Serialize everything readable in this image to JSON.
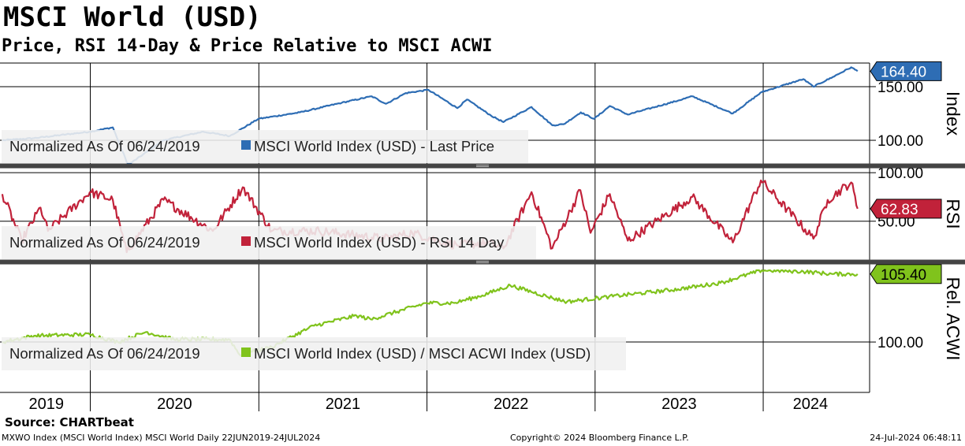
{
  "title": "MSCI World (USD)",
  "subtitle": "Price, RSI 14-Day & Price Relative to MSCI ACWI",
  "source": "Source: CHARTbeat",
  "footer": {
    "left": "MXWO Index (MSCI World Index) MSCI World  Daily 22JUN2019-24JUL2024",
    "center": "Copyright© 2024 Bloomberg Finance L.P.",
    "right": "24-Jul-2024 06:48:11"
  },
  "chart_data": [
    {
      "type": "line",
      "panel": "price",
      "axis_label": "Index",
      "legend_prefix": "Normalized As Of 06/24/2019",
      "series": [
        {
          "name": "MSCI World Index (USD) - Last Price",
          "color": "#2e6db4",
          "points": [
            [
              "2019-06-24",
              100
            ],
            [
              "2019-09-01",
              102
            ],
            [
              "2019-12-31",
              108
            ],
            [
              "2020-02-19",
              112
            ],
            [
              "2020-03-23",
              77
            ],
            [
              "2020-06-08",
              100
            ],
            [
              "2020-09-02",
              108
            ],
            [
              "2020-10-30",
              104
            ],
            [
              "2020-12-31",
              120
            ],
            [
              "2021-03-31",
              126
            ],
            [
              "2021-06-30",
              135
            ],
            [
              "2021-09-03",
              141
            ],
            [
              "2021-10-04",
              134
            ],
            [
              "2021-11-16",
              144
            ],
            [
              "2022-01-04",
              147
            ],
            [
              "2022-03-08",
              130
            ],
            [
              "2022-03-29",
              138
            ],
            [
              "2022-05-20",
              123
            ],
            [
              "2022-06-16",
              117
            ],
            [
              "2022-08-16",
              131
            ],
            [
              "2022-09-30",
              114
            ],
            [
              "2022-10-25",
              115
            ],
            [
              "2022-12-01",
              126
            ],
            [
              "2022-12-30",
              120
            ],
            [
              "2023-02-02",
              132
            ],
            [
              "2023-03-13",
              124
            ],
            [
              "2023-06-30",
              137
            ],
            [
              "2023-07-31",
              141
            ],
            [
              "2023-10-27",
              125
            ],
            [
              "2023-12-29",
              145
            ],
            [
              "2024-03-28",
              157
            ],
            [
              "2024-04-19",
              150
            ],
            [
              "2024-05-31",
              159
            ],
            [
              "2024-07-10",
              168
            ],
            [
              "2024-07-24",
              164.4
            ]
          ]
        }
      ],
      "y_ticks": [
        100,
        150
      ],
      "ylim": [
        78,
        172
      ],
      "last_value": "164.40"
    },
    {
      "type": "line",
      "panel": "rsi",
      "axis_label": "RSI",
      "legend_prefix": "Normalized As Of 06/24/2019",
      "series": [
        {
          "name": "MSCI World Index (USD) - RSI 14 Day",
          "color": "#c1223a",
          "points": [
            [
              "2019-06-24",
              78
            ],
            [
              "2019-08-05",
              30
            ],
            [
              "2019-09-15",
              64
            ],
            [
              "2019-10-01",
              40
            ],
            [
              "2019-12-31",
              80
            ],
            [
              "2020-02-19",
              72
            ],
            [
              "2020-03-20",
              18
            ],
            [
              "2020-06-08",
              72
            ],
            [
              "2020-09-23",
              40
            ],
            [
              "2020-11-27",
              85
            ],
            [
              "2021-01-29",
              40
            ],
            [
              "2021-05-12",
              40
            ],
            [
              "2021-09-30",
              32
            ],
            [
              "2021-11-30",
              38
            ],
            [
              "2022-01-27",
              30
            ],
            [
              "2022-03-08",
              25
            ],
            [
              "2022-05-12",
              28
            ],
            [
              "2022-06-16",
              22
            ],
            [
              "2022-08-16",
              80
            ],
            [
              "2022-09-30",
              22
            ],
            [
              "2022-11-30",
              82
            ],
            [
              "2022-12-22",
              38
            ],
            [
              "2023-02-02",
              78
            ],
            [
              "2023-03-13",
              30
            ],
            [
              "2023-07-31",
              75
            ],
            [
              "2023-10-27",
              28
            ],
            [
              "2023-12-27",
              92
            ],
            [
              "2024-04-19",
              32
            ],
            [
              "2024-05-20",
              72
            ],
            [
              "2024-07-10",
              90
            ],
            [
              "2024-07-24",
              62.83
            ]
          ]
        }
      ],
      "y_ticks": [
        50,
        100
      ],
      "ylim": [
        10,
        105
      ],
      "last_value": "62.83"
    },
    {
      "type": "line",
      "panel": "relative",
      "axis_label": "Rel. ACWI",
      "legend_prefix": "Normalized As Of 06/24/2019",
      "series": [
        {
          "name": "MSCI World Index (USD) / MSCI ACWI Index (USD)",
          "color": "#80c31c",
          "points": [
            [
              "2019-06-24",
              100
            ],
            [
              "2019-09-01",
              100.5
            ],
            [
              "2019-12-31",
              100.6
            ],
            [
              "2020-03-01",
              100
            ],
            [
              "2020-05-01",
              100.8
            ],
            [
              "2020-07-01",
              100.2
            ],
            [
              "2020-10-30",
              100.2
            ],
            [
              "2020-11-20",
              99
            ],
            [
              "2021-01-29",
              99.6
            ],
            [
              "2021-03-01",
              100.2
            ],
            [
              "2021-05-01",
              101.3
            ],
            [
              "2021-08-01",
              102.1
            ],
            [
              "2021-09-01",
              101.8
            ],
            [
              "2021-12-31",
              103.1
            ],
            [
              "2022-03-01",
              103.1
            ],
            [
              "2022-05-01",
              103.7
            ],
            [
              "2022-07-01",
              104.5
            ],
            [
              "2022-09-30",
              103.5
            ],
            [
              "2022-11-01",
              103.2
            ],
            [
              "2023-01-31",
              103.6
            ],
            [
              "2023-06-30",
              104.2
            ],
            [
              "2023-09-30",
              104.7
            ],
            [
              "2023-12-29",
              105.7
            ],
            [
              "2024-03-28",
              105.6
            ],
            [
              "2024-05-31",
              105.4
            ],
            [
              "2024-07-24",
              105.4
            ]
          ]
        }
      ],
      "y_ticks": [
        100
      ],
      "ylim": [
        97.5,
        106.2
      ],
      "last_value": "105.40"
    }
  ],
  "x_axis": {
    "start": "2019-06-24",
    "end": "2024-07-24",
    "year_labels": [
      "2019",
      "2020",
      "2021",
      "2022",
      "2023",
      "2024"
    ]
  }
}
